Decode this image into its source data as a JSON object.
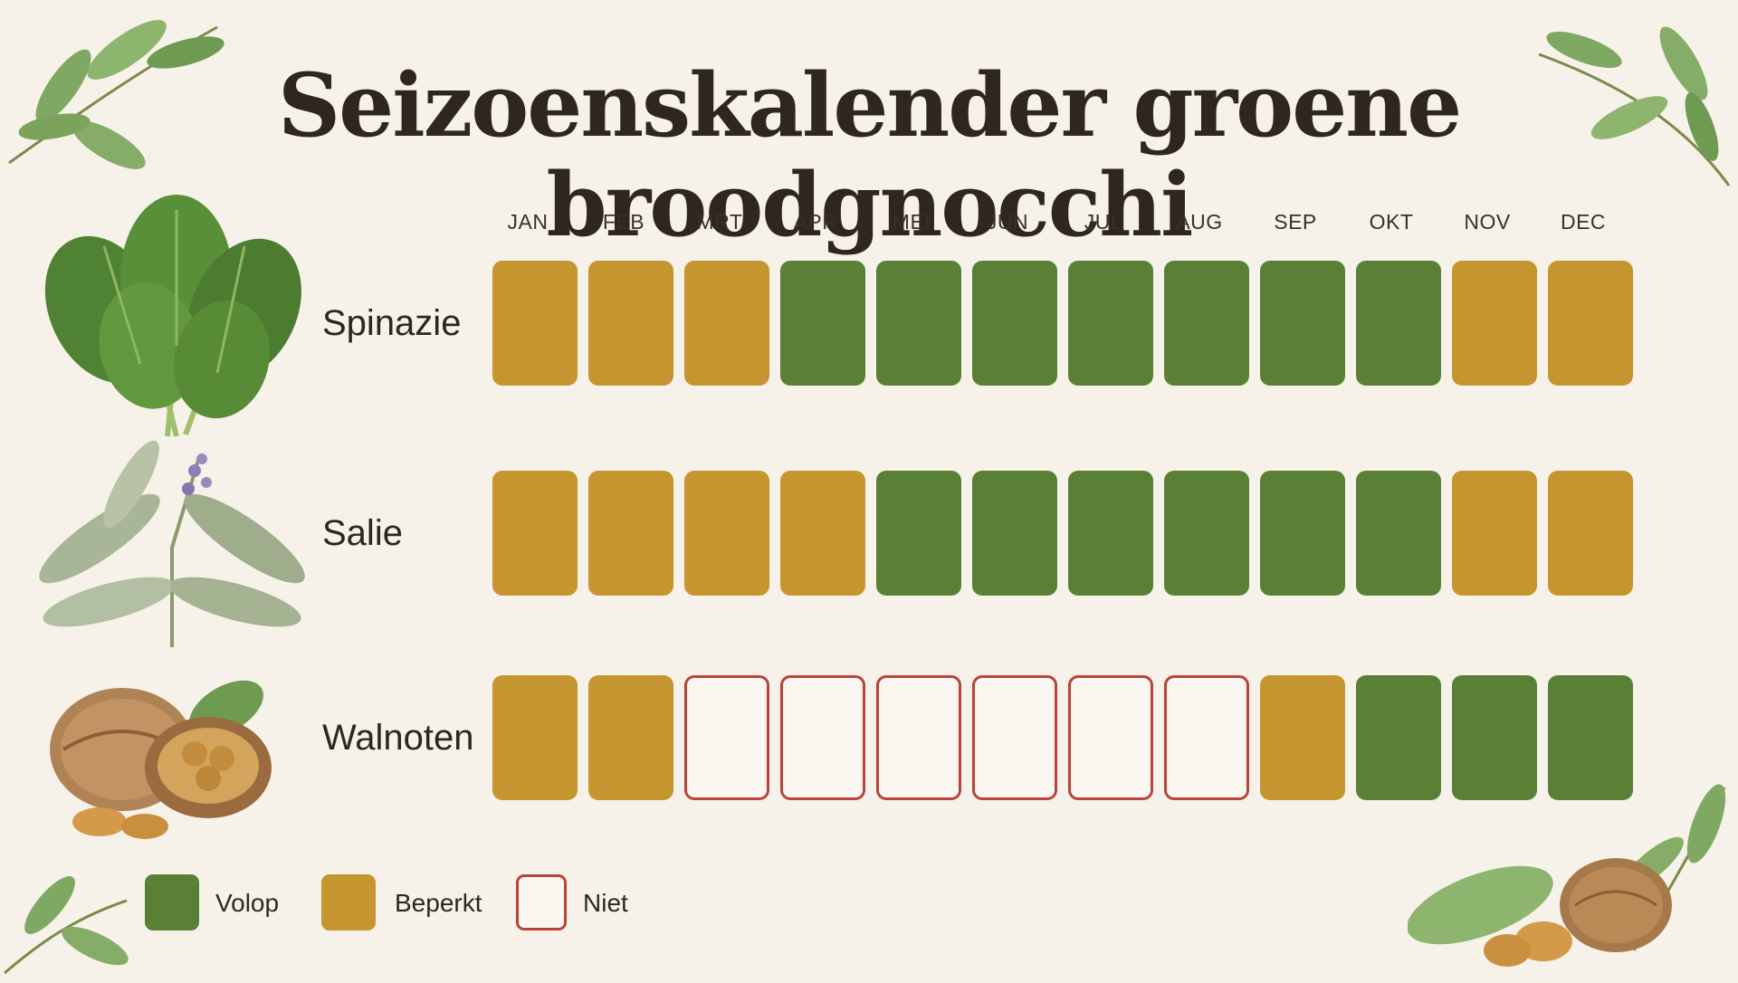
{
  "title": "Seizoenskalender groene broodgnocchi",
  "months": [
    "JAN",
    "FEB",
    "MRT",
    "APR",
    "MEI",
    "JUN",
    "JUL",
    "AUG",
    "SEP",
    "OKT",
    "NOV",
    "DEC"
  ],
  "rows": [
    {
      "label": "Spinazie",
      "icon": "spinach-icon",
      "status": [
        "beperkt",
        "beperkt",
        "beperkt",
        "volop",
        "volop",
        "volop",
        "volop",
        "volop",
        "volop",
        "volop",
        "beperkt",
        "beperkt"
      ]
    },
    {
      "label": "Salie",
      "icon": "sage-icon",
      "status": [
        "beperkt",
        "beperkt",
        "beperkt",
        "beperkt",
        "volop",
        "volop",
        "volop",
        "volop",
        "volop",
        "volop",
        "beperkt",
        "beperkt"
      ]
    },
    {
      "label": "Walnoten",
      "icon": "walnut-icon",
      "status": [
        "beperkt",
        "beperkt",
        "niet",
        "niet",
        "niet",
        "niet",
        "niet",
        "niet",
        "beperkt",
        "volop",
        "volop",
        "volop"
      ]
    }
  ],
  "legend": [
    {
      "key": "volop",
      "label": "Volop"
    },
    {
      "key": "beperkt",
      "label": "Beperkt"
    },
    {
      "key": "niet",
      "label": "Niet"
    }
  ],
  "colors": {
    "volop": "#5a8035",
    "beperkt": "#c5952f",
    "niet_border": "#b9433a",
    "background": "#f6f2e9",
    "leaf": "#6f9a52"
  }
}
